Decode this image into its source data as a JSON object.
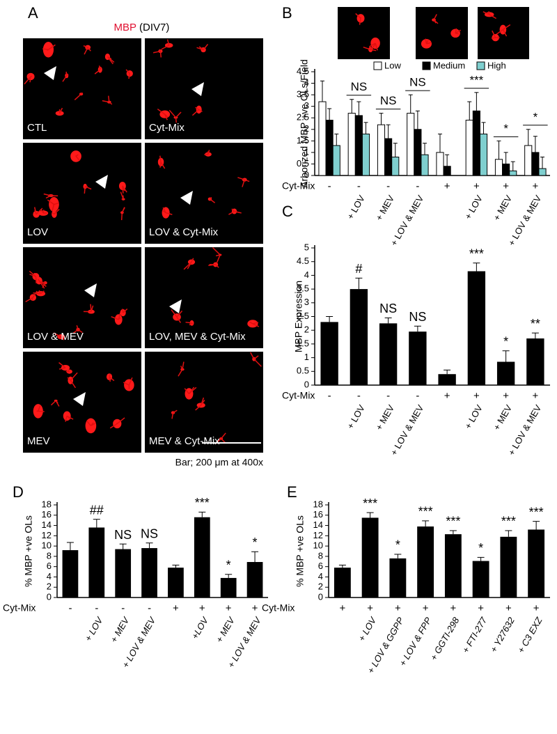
{
  "figure": {
    "panel_labels": [
      "A",
      "B",
      "C",
      "D",
      "E"
    ],
    "a_title_marker": "MBP",
    "a_title_rest": "(DIV7)",
    "a_images": [
      "CTL",
      "Cyt-Mix",
      "LOV",
      "LOV & Cyt-Mix",
      "LOV & MEV",
      "LOV, MEV & Cyt-Mix",
      "MEV",
      "MEV & Cyt-Mix"
    ],
    "a_scale": "Bar; 200 μm at 400x"
  },
  "chart_data": [
    {
      "type": "grouped_bar",
      "ylabel": "Arborized MBP +ve OLs/Field",
      "row_label": "Cyt-Mix",
      "row_values": [
        "-",
        "-",
        "-",
        "-",
        "+",
        "+",
        "+",
        "+"
      ],
      "categories": [
        null,
        "+ LOV",
        "+ MEV",
        "+ LOV & MEV",
        null,
        "+ LOV",
        "+ MEV",
        "+ LOV & MEV"
      ],
      "series": [
        {
          "name": "Low",
          "color": "#ffffff",
          "values": [
            3.2,
            2.7,
            2.2,
            2.7,
            1.0,
            2.4,
            0.7,
            1.3
          ],
          "errors": [
            0.9,
            0.6,
            0.5,
            0.8,
            0.8,
            0.8,
            0.8,
            0.7
          ]
        },
        {
          "name": "Medium",
          "color": "#000000",
          "values": [
            2.4,
            2.6,
            1.6,
            2.0,
            0.4,
            2.8,
            0.5,
            1.0
          ],
          "errors": [
            0.5,
            0.6,
            0.6,
            0.8,
            0.5,
            0.8,
            0.5,
            0.7
          ]
        },
        {
          "name": "High",
          "color": "#7fcfcf",
          "values": [
            1.3,
            1.8,
            0.8,
            0.9,
            0,
            1.8,
            0.2,
            0.3
          ],
          "errors": [
            0.5,
            0.5,
            0.6,
            0.5,
            0,
            0.5,
            0.4,
            0.5
          ]
        }
      ],
      "annotations": [
        null,
        "NS",
        "NS",
        "NS",
        null,
        "***",
        "*",
        "*"
      ],
      "ylim": [
        0,
        4.5
      ],
      "yticks": [
        0,
        0.5,
        1,
        1.5,
        2,
        2.5,
        3,
        3.5,
        4,
        4.5
      ]
    },
    {
      "type": "bar",
      "ylabel": "MBP  Expression",
      "row_label": "Cyt-Mix",
      "color": "#000000",
      "row_values": [
        "-",
        "-",
        "-",
        "-",
        "+",
        "+",
        "+",
        "+"
      ],
      "categories": [
        null,
        "+ LOV",
        "+ MEV",
        "+ LOV & MEV",
        null,
        "+ LOV",
        "+ MEV",
        "+ LOV & MEV"
      ],
      "values": [
        2.3,
        3.5,
        2.25,
        1.95,
        0.4,
        4.15,
        0.85,
        1.7
      ],
      "errors": [
        0.2,
        0.4,
        0.2,
        0.2,
        0.15,
        0.3,
        0.4,
        0.2
      ],
      "annotations": [
        null,
        "#",
        "NS",
        "NS",
        null,
        "***",
        "*",
        "**"
      ],
      "ylim": [
        0,
        5
      ],
      "yticks": [
        0,
        0.5,
        1,
        1.5,
        2,
        2.5,
        3,
        3.5,
        4,
        4.5,
        5
      ]
    },
    {
      "type": "bar",
      "ylabel": "% MBP +ve OLs",
      "row_label": "Cyt-Mix",
      "color": "#000000",
      "italic": true,
      "row_values": [
        "-",
        "-",
        "-",
        "-",
        "+",
        "+",
        "+",
        "+"
      ],
      "categories": [
        null,
        "+ LOV",
        "+ MEV",
        "+ LOV & MEV",
        null,
        "+LOV",
        "+ MEV",
        "+ LOV & MEV"
      ],
      "values": [
        9.2,
        13.6,
        9.4,
        9.6,
        5.8,
        15.6,
        3.8,
        6.9
      ],
      "errors": [
        1.5,
        1.6,
        1.0,
        1.0,
        0.5,
        1.0,
        0.7,
        2.0
      ],
      "annotations": [
        null,
        "##",
        "NS",
        "NS",
        null,
        "***",
        "*",
        "*"
      ],
      "ylim": [
        0,
        18
      ],
      "yticks": [
        0,
        2,
        4,
        6,
        8,
        10,
        12,
        14,
        16,
        18
      ]
    },
    {
      "type": "bar",
      "ylabel": "% MBP +ve OLs",
      "row_label": "Cyt-Mix",
      "color": "#000000",
      "italic": true,
      "row_values": [
        "+",
        "+",
        "+",
        "+",
        "+",
        "+",
        "+",
        "+"
      ],
      "categories": [
        null,
        "+ LOV",
        "+ LOV & GGPP",
        "+ LOV & FPP",
        "+ GGTI-298",
        "+ FTI-277",
        "+ Y27632",
        "+ C3 EXZ"
      ],
      "values": [
        5.8,
        15.5,
        7.6,
        13.8,
        12.3,
        7.1,
        11.8,
        13.2
      ],
      "errors": [
        0.5,
        1.0,
        0.8,
        1.1,
        0.7,
        0.7,
        1.2,
        1.6
      ],
      "annotations": [
        null,
        "***",
        "*",
        "***",
        "***",
        "*",
        "***",
        "***"
      ],
      "ylim": [
        0,
        18
      ],
      "yticks": [
        0,
        2,
        4,
        6,
        8,
        10,
        12,
        14,
        16,
        18
      ]
    }
  ]
}
